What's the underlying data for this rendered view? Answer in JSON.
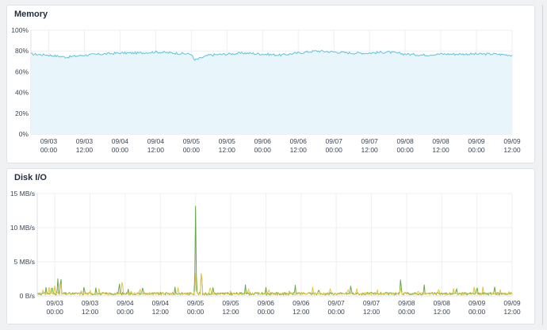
{
  "colors": {
    "memory_line": "#5fc3da",
    "memory_fill": "#e8f6fc",
    "disk_read": "#6da64a",
    "disk_write": "#e3c73a"
  },
  "memory_panel": {
    "title": "Memory",
    "chart_data": {
      "type": "area",
      "title": "Memory",
      "ylabel": "",
      "xlabel": "",
      "y_ticks": [
        "0%",
        "20%",
        "40%",
        "60%",
        "80%",
        "100%"
      ],
      "ylim": [
        0,
        100
      ],
      "x_ticks": [
        {
          "date": "09/03",
          "time": "00:00"
        },
        {
          "date": "09/03",
          "time": "12:00"
        },
        {
          "date": "09/04",
          "time": "00:00"
        },
        {
          "date": "09/04",
          "time": "12:00"
        },
        {
          "date": "09/05",
          "time": "00:00"
        },
        {
          "date": "09/05",
          "time": "12:00"
        },
        {
          "date": "09/06",
          "time": "00:00"
        },
        {
          "date": "09/06",
          "time": "12:00"
        },
        {
          "date": "09/07",
          "time": "00:00"
        },
        {
          "date": "09/07",
          "time": "12:00"
        },
        {
          "date": "09/08",
          "time": "00:00"
        },
        {
          "date": "09/08",
          "time": "12:00"
        },
        {
          "date": "09/09",
          "time": "00:00"
        },
        {
          "date": "09/09",
          "time": "12:00"
        }
      ],
      "x_range": [
        "09/02 18:00",
        "09/09 12:00"
      ],
      "series": [
        {
          "x": [
            "09/02 18:00",
            "09/03 00:00",
            "09/03 06:00",
            "09/03 12:00",
            "09/03 18:00",
            "09/04 00:00",
            "09/04 06:00",
            "09/04 12:00",
            "09/04 18:00",
            "09/05 00:00",
            "09/05 01:00",
            "09/05 06:00",
            "09/05 12:00",
            "09/05 18:00",
            "09/06 00:00",
            "09/06 06:00",
            "09/06 12:00",
            "09/06 18:00",
            "09/07 00:00",
            "09/07 06:00",
            "09/07 12:00",
            "09/07 18:00",
            "09/08 00:00",
            "09/08 06:00",
            "09/08 12:00",
            "09/08 18:00",
            "09/09 00:00",
            "09/09 06:00",
            "09/09 12:00"
          ],
          "y": [
            77,
            76,
            74,
            76,
            77,
            78,
            78,
            79,
            78,
            77,
            71,
            76,
            77,
            78,
            77,
            76,
            78,
            80,
            79,
            78,
            78,
            79,
            77,
            76,
            77,
            77,
            77,
            77,
            76
          ]
        }
      ],
      "grid": true
    }
  },
  "disk_panel": {
    "title": "Disk I/O",
    "chart_data": {
      "type": "line",
      "title": "Disk I/O",
      "ylabel": "",
      "xlabel": "",
      "y_ticks": [
        "0 B/s",
        "5 MB/s",
        "10 MB/s",
        "15 MB/s"
      ],
      "ylim": [
        0,
        15
      ],
      "x_ticks": [
        {
          "date": "09/03",
          "time": "00:00"
        },
        {
          "date": "09/03",
          "time": "12:00"
        },
        {
          "date": "09/04",
          "time": "00:00"
        },
        {
          "date": "09/04",
          "time": "12:00"
        },
        {
          "date": "09/05",
          "time": "00:00"
        },
        {
          "date": "09/05",
          "time": "12:00"
        },
        {
          "date": "09/06",
          "time": "00:00"
        },
        {
          "date": "09/06",
          "time": "12:00"
        },
        {
          "date": "09/07",
          "time": "00:00"
        },
        {
          "date": "09/07",
          "time": "12:00"
        },
        {
          "date": "09/08",
          "time": "00:00"
        },
        {
          "date": "09/08",
          "time": "12:00"
        },
        {
          "date": "09/09",
          "time": "00:00"
        },
        {
          "date": "09/09",
          "time": "12:00"
        }
      ],
      "x_range": [
        "09/02 18:00",
        "09/09 12:00"
      ],
      "series": [
        {
          "x": [
            "09/02 21:00",
            "09/02 23:00",
            "09/03 01:00",
            "09/03 02:00",
            "09/03 10:00",
            "09/03 14:00",
            "09/03 22:00",
            "09/04 01:00",
            "09/04 06:00",
            "09/04 17:00",
            "09/05 00:00",
            "09/05 02:00",
            "09/05 06:00",
            "09/05 17:00",
            "09/06 00:00",
            "09/06 10:00",
            "09/06 18:00",
            "09/07 05:00",
            "09/07 22:00",
            "09/08 06:00",
            "09/08 17:00",
            "09/09 00:00",
            "09/09 06:00"
          ],
          "y": [
            1.4,
            1.8,
            2.7,
            3.4,
            1.6,
            1.3,
            2.3,
            1.2,
            1.6,
            1.4,
            13.2,
            4.7,
            1.5,
            1.7,
            1.4,
            1.7,
            1.2,
            1.9,
            3.0,
            1.8,
            1.4,
            1.7,
            1.6
          ]
        },
        {
          "x": [
            "09/02 20:00",
            "09/02 22:00",
            "09/03 00:00",
            "09/03 02:00",
            "09/03 09:00",
            "09/03 12:00",
            "09/03 15:00",
            "09/03 23:00",
            "09/04 02:00",
            "09/04 05:00",
            "09/04 18:00",
            "09/05 00:00",
            "09/05 02:00",
            "09/05 05:00",
            "09/05 12:00",
            "09/05 18:00",
            "09/06 01:00",
            "09/06 08:00",
            "09/06 16:00",
            "09/06 22:00",
            "09/07 04:00",
            "09/07 07:00",
            "09/07 14:00",
            "09/07 22:00",
            "09/08 04:00",
            "09/08 11:00",
            "09/08 16:00",
            "09/08 23:00",
            "09/09 02:00",
            "09/09 08:00",
            "09/09 11:00"
          ],
          "y": [
            1.2,
            1.5,
            1.8,
            2.4,
            1.1,
            1.0,
            1.3,
            2.9,
            1.0,
            1.3,
            1.5,
            3.3,
            4.8,
            1.8,
            1.0,
            1.3,
            1.2,
            1.1,
            1.5,
            1.4,
            1.3,
            1.4,
            1.2,
            1.4,
            1.0,
            1.3,
            1.2,
            1.5,
            1.4,
            1.1,
            0.8
          ]
        }
      ],
      "grid": true
    }
  }
}
